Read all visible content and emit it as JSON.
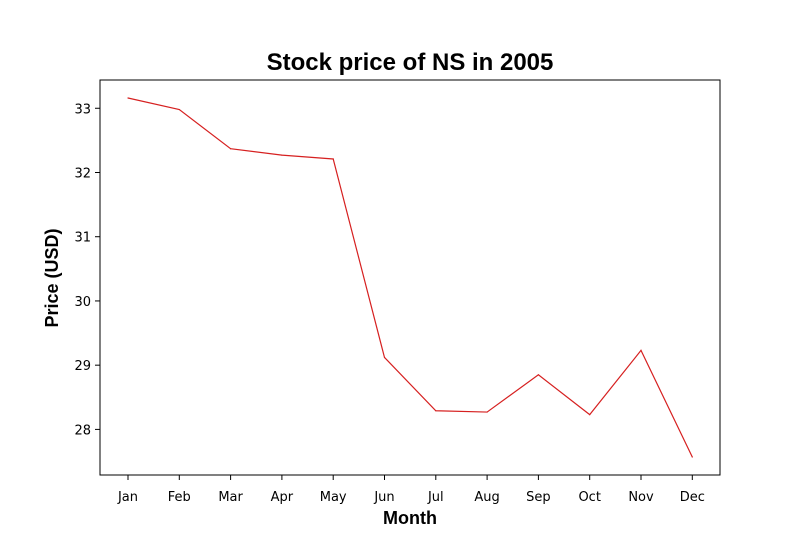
{
  "chart_data": {
    "type": "line",
    "title": "Stock price of NS in 2005",
    "xlabel": "Month",
    "ylabel": "Price (USD)",
    "categories": [
      "Jan",
      "Feb",
      "Mar",
      "Apr",
      "May",
      "Jun",
      "Jul",
      "Aug",
      "Sep",
      "Oct",
      "Nov",
      "Dec"
    ],
    "series": [
      {
        "values": [
          33.16,
          32.98,
          32.37,
          32.27,
          32.21,
          29.12,
          28.29,
          28.27,
          28.85,
          28.23,
          29.23,
          27.57
        ],
        "color": "#d62020"
      }
    ],
    "yticks": [
      28,
      29,
      30,
      31,
      32,
      33
    ],
    "ylim": [
      27.29,
      33.44
    ],
    "grid": false,
    "legend": "none"
  }
}
